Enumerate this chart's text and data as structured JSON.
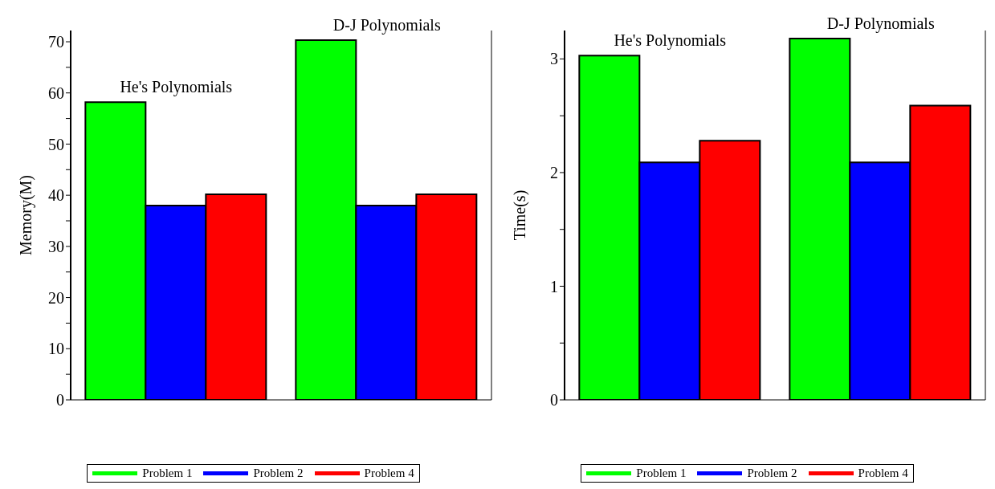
{
  "chart_data": [
    {
      "type": "bar",
      "ylabel": "Memory(M)",
      "categories": [
        null,
        null
      ],
      "series": [
        {
          "name": "Problem 1",
          "color": "#00ff00",
          "values": [
            58.2,
            70.3
          ]
        },
        {
          "name": "Problem 2",
          "color": "#0000ff",
          "values": [
            38.0,
            38.0
          ]
        },
        {
          "name": "Problem 4",
          "color": "#ff0000",
          "values": [
            40.2,
            40.2
          ]
        }
      ],
      "ylim": [
        0,
        72.2
      ],
      "yticks": [
        0,
        {
          "value": 5,
          "label": null
        },
        10,
        {
          "value": 15,
          "label": null
        },
        20,
        {
          "value": 25,
          "label": null
        },
        30,
        {
          "value": 35,
          "label": null
        },
        40,
        {
          "value": 45,
          "label": null
        },
        50,
        {
          "value": 55,
          "label": null
        },
        60,
        {
          "value": 65,
          "label": null
        },
        70
      ],
      "annotations": [
        "He's Polynomials",
        "D-J Polynomials"
      ],
      "legend": "bottom",
      "grid": false
    },
    {
      "type": "bar",
      "ylabel": "Time(s)",
      "categories": [
        null,
        null
      ],
      "series": [
        {
          "name": "Problem 1",
          "color": "#00ff00",
          "values": [
            3.03,
            3.18
          ]
        },
        {
          "name": "Problem 2",
          "color": "#0000ff",
          "values": [
            2.09,
            2.09
          ]
        },
        {
          "name": "Problem 4",
          "color": "#ff0000",
          "values": [
            2.28,
            2.59
          ]
        }
      ],
      "ylim": [
        0,
        3.25
      ],
      "yticks": [
        0,
        {
          "value": 0.5,
          "label": null
        },
        1,
        {
          "value": 1.5,
          "label": null
        },
        2,
        {
          "value": 2.5,
          "label": null
        },
        3
      ],
      "annotations": [
        "He's Polynomials",
        "D-J Polynomials"
      ],
      "legend": "bottom",
      "grid": false
    }
  ]
}
